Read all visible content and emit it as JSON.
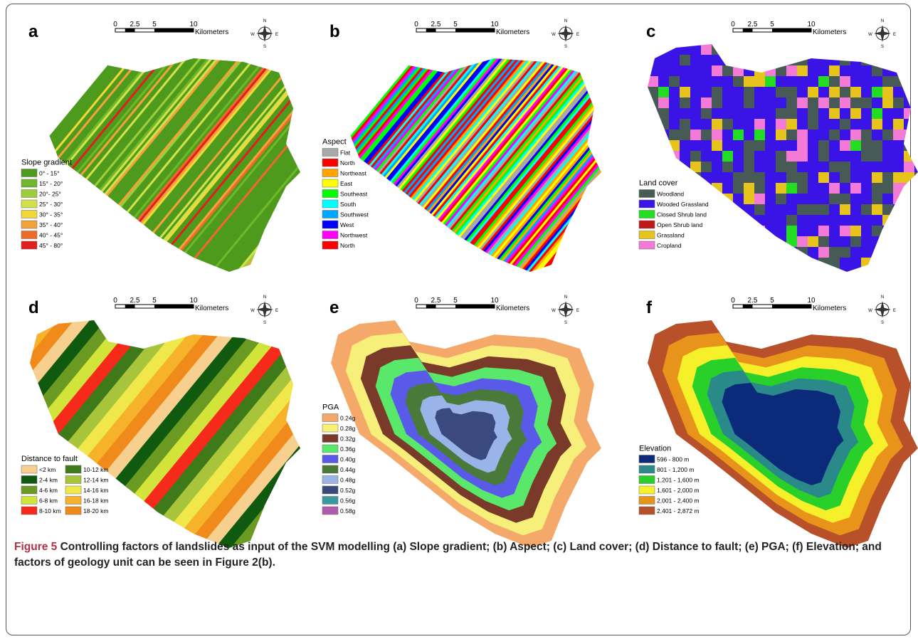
{
  "panels": [
    {
      "letter": "a",
      "scale": [
        "0",
        "2.5",
        "5",
        "10"
      ],
      "unit": "Kilometers",
      "legend": {
        "title": "Slope gradient",
        "columns": [
          [
            {
              "label": "0° - 15°",
              "color": "#4d9a1c"
            },
            {
              "label": "15° - 20°",
              "color": "#6fb82a"
            },
            {
              "label": "20°- 25°",
              "color": "#9ccd3a"
            },
            {
              "label": "25° - 30°",
              "color": "#d2e04a"
            },
            {
              "label": "30° - 35°",
              "color": "#f0d83a"
            },
            {
              "label": "35° - 40°",
              "color": "#f2a23a"
            },
            {
              "label": "40° - 45°",
              "color": "#ef6a2a"
            },
            {
              "label": "45° - 80°",
              "color": "#e21f1f"
            }
          ]
        ]
      }
    },
    {
      "letter": "b",
      "scale": [
        "0",
        "2.5",
        "5",
        "10"
      ],
      "unit": "Kilometers",
      "legend": {
        "title": "Aspect",
        "columns": [
          [
            {
              "label": "Flat",
              "color": "#a8a8a8"
            },
            {
              "label": "North",
              "color": "#ff0000"
            },
            {
              "label": "Northeast",
              "color": "#ffa500"
            },
            {
              "label": "East",
              "color": "#ffff00"
            },
            {
              "label": "Southeast",
              "color": "#00ff00"
            },
            {
              "label": "South",
              "color": "#00ffff"
            },
            {
              "label": "Southwest",
              "color": "#00a5ff"
            },
            {
              "label": "West",
              "color": "#0000ff"
            },
            {
              "label": "Northwest",
              "color": "#ff00ff"
            },
            {
              "label": "North",
              "color": "#ff0000"
            }
          ]
        ]
      }
    },
    {
      "letter": "c",
      "scale": [
        "0",
        "2.5",
        "5",
        "10"
      ],
      "unit": "Kilometers",
      "legend": {
        "title": "Land cover",
        "columns": [
          [
            {
              "label": "Woodland",
              "color": "#485a55"
            },
            {
              "label": "Wooded Grassland",
              "color": "#3a14e6"
            },
            {
              "label": "Closed Shrub land",
              "color": "#22dd22"
            },
            {
              "label": "Open Shrub land",
              "color": "#c01818"
            },
            {
              "label": "Grassland",
              "color": "#e6c41c"
            },
            {
              "label": "Cropland",
              "color": "#f47ad8"
            }
          ]
        ]
      }
    },
    {
      "letter": "d",
      "scale": [
        "0",
        "2.5",
        "5",
        "10"
      ],
      "unit": "Kilometers",
      "legend": {
        "title": "Distance to fault",
        "columns": [
          [
            {
              "label": "<2 km",
              "color": "#f7cf8e"
            },
            {
              "label": "2-4 km",
              "color": "#0f5a0f"
            },
            {
              "label": "4-6 km",
              "color": "#6b9a22"
            },
            {
              "label": "6-8 km",
              "color": "#d2e43a"
            },
            {
              "label": "8-10 km",
              "color": "#f52a1a"
            }
          ],
          [
            {
              "label": "10-12 km",
              "color": "#3f7a1a"
            },
            {
              "label": "12-14 km",
              "color": "#a8c43a"
            },
            {
              "label": "14-16 km",
              "color": "#f0e84a"
            },
            {
              "label": "16-18 km",
              "color": "#f6b22a"
            },
            {
              "label": "18-20 km",
              "color": "#f08a1a"
            }
          ]
        ]
      }
    },
    {
      "letter": "e",
      "scale": [
        "0",
        "2.5",
        "5",
        "10"
      ],
      "unit": "Kilometers",
      "legend": {
        "title": "PGA",
        "columns": [
          [
            {
              "label": "0.24g",
              "color": "#f4a86a"
            },
            {
              "label": "0.28g",
              "color": "#f6f07a"
            },
            {
              "label": "0.32g",
              "color": "#7a3a2a"
            },
            {
              "label": "0.36g",
              "color": "#5ae86a"
            },
            {
              "label": "0.40g",
              "color": "#5a5ae8"
            },
            {
              "label": "0.44g",
              "color": "#4a7a3a"
            },
            {
              "label": "0.48g",
              "color": "#9ab4ea"
            },
            {
              "label": "0.52g",
              "color": "#3a4a7e"
            },
            {
              "label": "0.56g",
              "color": "#3a9aa0"
            },
            {
              "label": "0.58g",
              "color": "#b05ab0"
            }
          ]
        ]
      }
    },
    {
      "letter": "f",
      "scale": [
        "0",
        "2.5",
        "5",
        "10"
      ],
      "unit": "Kilometers",
      "legend": {
        "title": "Elevation",
        "columns": [
          [
            {
              "label": "596 - 800 m",
              "color": "#0c2a7a"
            },
            {
              "label": "801 - 1,200 m",
              "color": "#2a8a8a"
            },
            {
              "label": "1,201 - 1,600 m",
              "color": "#2ad02a"
            },
            {
              "label": "1,601 - 2,000 m",
              "color": "#f6f02a"
            },
            {
              "label": "2,001 - 2,400 m",
              "color": "#e8941a"
            },
            {
              "label": "2,401 - 2,872 m",
              "color": "#b8502a"
            }
          ]
        ]
      }
    }
  ],
  "compass": {
    "n": "N",
    "e": "E",
    "s": "S",
    "w": "W"
  },
  "caption": {
    "label": "Figure 5",
    "text": "Controlling factors of landslides as input of the SVM modelling (a) Slope gradient; (b) Aspect; (c) Land cover; (d) Distance to fault; (e) PGA; (f) Elevation; and factors of geology unit can be seen in Figure 2(b)."
  }
}
